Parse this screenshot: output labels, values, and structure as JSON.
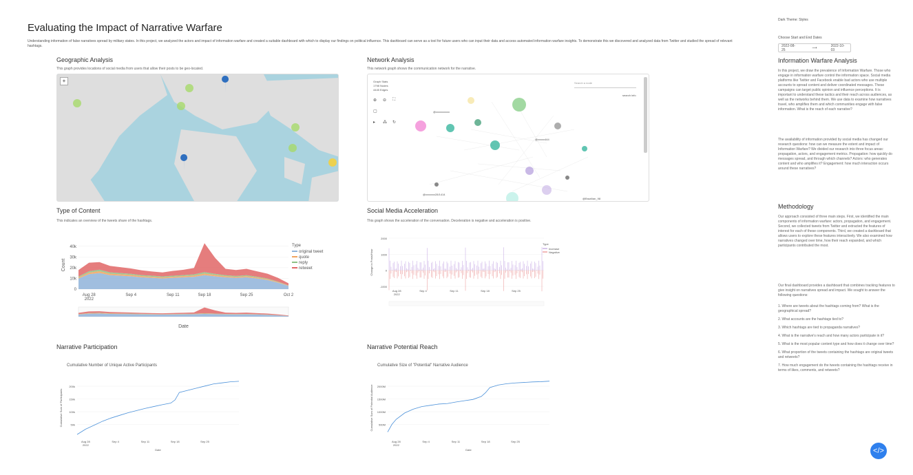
{
  "header": {
    "title": "Evaluating the Impact of Narrative Warfare",
    "intro": "Understanding information of false narratives spread by military states. In this project, we analyzed the actors and impact of information warfare and created a suitable dashboard with which to display our findings on political influence. This dashboard can serve as a tool for future users who can input their data and access automated information warfare insights. To demonstrate this we discovered and analyzed data from Twitter and studied the spread of relevant hashtags."
  },
  "sections": {
    "geo": {
      "title": "Geographic Analysis",
      "desc": "This graph provides locations of social media from users that allow their posts to be geo-located."
    },
    "network": {
      "title": "Network Analysis",
      "desc": "This network graph shows the communication network for the narrative.",
      "stats_label": "Graph Stats",
      "nodes": "1798 Nodes",
      "edges": "4445 Edges",
      "search_placeholder": "Search a node",
      "label_a": "@xxxxxxxxxx",
      "label_b": "@xxxxx444",
      "label_c": "@xxxxxxx28/1414",
      "label_d": "@Brazilian_98",
      "label_e": "search info"
    },
    "content": {
      "title": "Type of Content",
      "desc": "This indicates an overview of the tweets share of the hashtags."
    },
    "accel": {
      "title": "Social Media Acceleration",
      "desc": "This graph shows the acceleration of the conversation. Deceleration is negative and acceleration is positive."
    },
    "participation": {
      "title": "Narrative Participation",
      "chart_title": "Cumulative Number of Unique Active Participants"
    },
    "reach": {
      "title": "Narrative Potential Reach",
      "chart_title": "Cumulative Size of \"Potential\" Narrative Audience"
    }
  },
  "sidebar": {
    "theme_label": "Dark Theme: Styles",
    "date_label": "Choose Start and End Dates",
    "start_date": "2022-08-25",
    "end_date": "2022-10-03",
    "arrow": "⟶",
    "analysis_title": "Information Warfare Analysis",
    "analysis_p1": "In this project, we draw the prevalence of Information Warfare. Those who engage in information warfare control the information space. Social media platforms like Twitter and Facebook enable bad actors who use multiple accounts to spread content and deliver coordinated messages. These campaigns can target public opinion and influence perceptions. It is important to understand these tactics and their reach across audiences, as well as the networks behind them. We use data to examine how narratives travel, who amplifies them and which communities engage with false information. What is the reach of each narrative?",
    "analysis_p2": "The availability of information provided by social media has changed our research questions: how can we measure the extent and impact of Information Warfare? We divided our research into three focus areas: propagation, actors, and engagement metrics. Propagation: how quickly do messages spread, and through which channels? Actors: who generates content and who amplifies it? Engagement: how much interaction occurs around these narratives?",
    "method_title": "Methodology",
    "method_p1": "Our approach consisted of three main steps. First, we identified the main components of information warfare: actors, propagation, and engagement. Second, we collected tweets from Twitter and extracted the features of interest for each of these components. Third, we created a dashboard that allows users to explore these features interactively. We also examined how narratives changed over time, how their reach expanded, and which participants contributed the most.",
    "method_p2": "Our final dashboard provides a dashboard that combines tracking features to give insight on narratives spread and impact. We sought to answer the following questions:",
    "questions": [
      "1. Where are tweets about the hashtags coming from? What is the geographical spread?",
      "2. What accounts are the hashtags tied to?",
      "3. Which hashtags are tied to propaganda narratives?",
      "4. What is the narrative's reach and how many actors participate in it?",
      "5. What is the most popular content type and how does it change over time?",
      "6. What proportion of the tweets containing the hashtags are original tweets and retweets?",
      "7. How much engagement do the tweets containing the hashtags receive in terms of likes, comments, and retweets?"
    ]
  },
  "chart_data": [
    {
      "type": "area",
      "title": "",
      "xlabel": "Date",
      "ylabel": "Count",
      "x": [
        "Aug 26",
        "Aug 28",
        "Aug 30",
        "Sep 1",
        "Sep 3",
        "Sep 5",
        "Sep 7",
        "Sep 9",
        "Sep 11",
        "Sep 13",
        "Sep 15",
        "Sep 17",
        "Sep 18",
        "Sep 19",
        "Sep 21",
        "Sep 23",
        "Sep 25",
        "Sep 27",
        "Sep 29",
        "Oct 1",
        "Oct 2"
      ],
      "xticks": [
        "Aug 28\n2022",
        "Sep 4",
        "Sep 11",
        "Sep 18",
        "Sep 25",
        "Oct 2"
      ],
      "yticks": [
        "0",
        "10k",
        "20k",
        "30k",
        "40k"
      ],
      "ylim": [
        0,
        45000
      ],
      "legend_title": "Type",
      "legend_position": "right",
      "series": [
        {
          "name": "original tweet",
          "color": "#8fb3d9",
          "values": [
            10000,
            14000,
            15000,
            13000,
            12500,
            12000,
            11000,
            10500,
            10000,
            10500,
            11000,
            11500,
            13000,
            12000,
            11000,
            10500,
            11000,
            10000,
            8500,
            6000,
            3000
          ]
        },
        {
          "name": "quote",
          "color": "#f0a35e",
          "values": [
            1000,
            1500,
            1800,
            1500,
            1400,
            1300,
            1200,
            1100,
            1000,
            1100,
            1200,
            1300,
            1600,
            1300,
            1100,
            1000,
            1100,
            900,
            800,
            600,
            300
          ]
        },
        {
          "name": "reply",
          "color": "#8cc084",
          "values": [
            800,
            1200,
            1400,
            1200,
            1100,
            1000,
            900,
            900,
            800,
            900,
            900,
            1000,
            1300,
            1000,
            900,
            800,
            900,
            700,
            600,
            400,
            200
          ]
        },
        {
          "name": "retweet",
          "color": "#e06666",
          "values": [
            6000,
            8000,
            7000,
            6000,
            5500,
            5000,
            4500,
            4000,
            3800,
            4500,
            5000,
            6000,
            27000,
            15000,
            6000,
            5500,
            6000,
            5000,
            4500,
            3500,
            2000
          ]
        }
      ]
    },
    {
      "type": "line",
      "title": "",
      "ylabel": "Change in Posts/Hour",
      "xticks": [
        "Aug 28\n2022",
        "Sep 4",
        "Sep 11",
        "Sep 18",
        "Sep 25"
      ],
      "yticks": [
        "2000",
        "1000",
        "0",
        "-1000"
      ],
      "legend_title": "Type",
      "series": [
        {
          "name": "Increase",
          "color": "#b18cd9"
        },
        {
          "name": "Negative",
          "color": "#e57373"
        }
      ]
    },
    {
      "type": "line",
      "title": "Cumulative Number of Unique Active Participants",
      "xlabel": "Date",
      "ylabel": "Cumulative Sum of Participants",
      "xticks": [
        "Aug 28\n2022",
        "Sep 4",
        "Sep 11",
        "Sep 18",
        "Sep 25"
      ],
      "yticks": [
        "50k",
        "100k",
        "150k",
        "200k"
      ],
      "ylim": [
        0,
        220000
      ],
      "x": [
        0,
        2,
        4,
        6,
        8,
        10,
        12,
        14,
        16,
        18,
        20,
        22,
        23,
        24,
        26,
        28,
        30,
        32,
        34,
        36,
        38
      ],
      "values": [
        10000,
        30000,
        45000,
        60000,
        72000,
        82000,
        92000,
        100000,
        108000,
        115000,
        122000,
        128000,
        140000,
        168000,
        176000,
        184000,
        192000,
        200000,
        204000,
        208000,
        210000
      ]
    },
    {
      "type": "line",
      "title": "Cumulative Size of \"Potential\" Narrative Audience",
      "xlabel": "Date",
      "ylabel": "Cumulative Sum of Potential Audience",
      "xticks": [
        "Aug 28\n2022",
        "Sep 4",
        "Sep 11",
        "Sep 18",
        "Sep 25"
      ],
      "yticks": [
        "500M",
        "1000M",
        "1500M",
        "2000M"
      ],
      "ylim": [
        0,
        2300000000
      ],
      "x": [
        0,
        1,
        2,
        4,
        6,
        8,
        10,
        12,
        14,
        16,
        18,
        20,
        22,
        23,
        24,
        26,
        28,
        30,
        32,
        34,
        36,
        38
      ],
      "values": [
        200000000,
        500000000,
        700000000,
        950000000,
        1100000000,
        1200000000,
        1250000000,
        1300000000,
        1320000000,
        1380000000,
        1430000000,
        1480000000,
        1600000000,
        1750000000,
        1950000000,
        2050000000,
        2100000000,
        2130000000,
        2150000000,
        2170000000,
        2180000000,
        2200000000
      ]
    }
  ]
}
